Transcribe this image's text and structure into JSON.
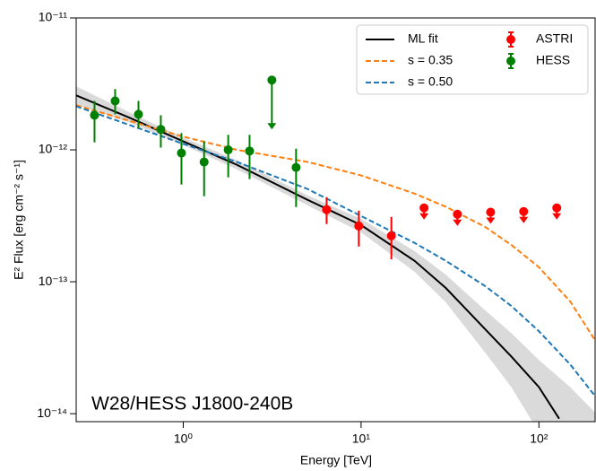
{
  "chart_data": {
    "type": "line",
    "annotation": "W28/HESS J1800-240B",
    "x_label": "Energy [TeV]",
    "y_label": "E² Flux [erg cm⁻² s⁻¹]",
    "log_x": true,
    "log_y": true,
    "legend": "upper right",
    "xlim": [
      0.25,
      207
    ],
    "ylim": [
      8.7e-15,
      1e-11
    ],
    "xticks": [
      {
        "value": 1,
        "label": "10⁰"
      },
      {
        "value": 10,
        "label": "10¹"
      },
      {
        "value": 100,
        "label": "10²"
      }
    ],
    "yticks": [
      {
        "value": 1e-14,
        "label": "10⁻¹⁴"
      },
      {
        "value": 1e-13,
        "label": "10⁻¹³"
      },
      {
        "value": 1e-12,
        "label": "10⁻¹²"
      },
      {
        "value": 1e-11,
        "label": "10⁻¹¹"
      }
    ],
    "band": {
      "color": "#dadada",
      "x": [
        0.25,
        0.5,
        1,
        2,
        5,
        10,
        20,
        30,
        50,
        70,
        100,
        150,
        207
      ],
      "high": [
        3.03e-12,
        1.92e-12,
        1.24e-12,
        8.35e-13,
        4.52e-13,
        3e-13,
        1.71e-13,
        1.13e-13,
        6.05e-14,
        4.08e-14,
        2.55e-14,
        1.59e-14,
        1.02e-14
      ],
      "low": [
        2.21e-12,
        1.61e-12,
        1.09e-12,
        7.13e-13,
        3.8e-13,
        2.37e-13,
        1.19e-13,
        6.97e-14,
        2.89e-14,
        1.59e-14,
        7.2e-15,
        5e-15,
        3e-15
      ]
    },
    "lines": [
      {
        "name": "ML fit",
        "color": "#000000",
        "linestyle": "solid",
        "x": [
          0.25,
          0.5,
          1,
          2,
          5,
          10,
          20,
          30,
          50,
          70,
          100,
          130
        ],
        "values": [
          2.59e-12,
          1.75e-12,
          1.16e-12,
          7.71e-13,
          4.18e-13,
          2.69e-13,
          1.44e-13,
          8.95e-14,
          4.35e-14,
          2.71e-14,
          1.59e-14,
          9.16e-15
        ]
      },
      {
        "name": "s = 0.35",
        "color": "#ff7f0e",
        "linestyle": "dashed",
        "x": [
          0.25,
          1,
          2,
          5,
          10,
          20,
          30,
          50,
          70,
          100,
          150,
          207
        ],
        "values": [
          2.18e-12,
          1.26e-12,
          1e-12,
          8.1e-13,
          6.4e-13,
          4.66e-13,
          3.7e-13,
          2.6e-13,
          1.9e-13,
          1.29e-13,
          7.08e-14,
          3.6e-14
        ]
      },
      {
        "name": "s = 0.50",
        "color": "#1f77b4",
        "linestyle": "dashed",
        "x": [
          0.25,
          1,
          2,
          5,
          10,
          20,
          30,
          50,
          70,
          100,
          150,
          207
        ],
        "values": [
          2.14e-12,
          1.11e-12,
          8.1e-13,
          5.05e-13,
          3.15e-13,
          1.97e-13,
          1.44e-13,
          9.25e-14,
          6.55e-14,
          4.22e-14,
          2.36e-14,
          1.36e-14
        ]
      }
    ],
    "points": [
      {
        "name": "ASTRI",
        "color": "#ff0000",
        "x": [
          6.4,
          9.71,
          14.8,
          22.6,
          34.8,
          53.5,
          82.1,
          126
        ],
        "values": [
          3.52e-13,
          2.65e-13,
          2.23e-13,
          3.63e-13,
          3.25e-13,
          3.37e-13,
          3.41e-13,
          3.63e-13
        ],
        "ylow": [
          2.74e-13,
          1.85e-13,
          1.48e-13,
          null,
          null,
          null,
          null,
          null
        ],
        "yhigh": [
          4.38e-13,
          3.46e-13,
          3.1e-13,
          null,
          null,
          null,
          null,
          null
        ],
        "upper_limits": [
          false,
          false,
          false,
          true,
          true,
          true,
          true,
          true
        ]
      },
      {
        "name": "HESS",
        "color": "#008000",
        "x": [
          0.317,
          0.414,
          0.56,
          0.748,
          0.977,
          1.31,
          1.79,
          2.36,
          3.15,
          4.31
        ],
        "values": [
          1.83e-12,
          2.35e-12,
          1.86e-12,
          1.43e-12,
          9.46e-13,
          8.09e-13,
          1e-12,
          9.8e-13,
          3.38e-12,
          7.36e-13
        ],
        "ylow": [
          1.14e-12,
          1.86e-12,
          1.45e-12,
          1.04e-12,
          5.46e-13,
          4.45e-13,
          6.19e-13,
          6e-13,
          null,
          3.69e-13
        ],
        "yhigh": [
          2.35e-12,
          2.89e-12,
          2.35e-12,
          1.83e-12,
          1.34e-12,
          1.16e-12,
          1.3e-12,
          1.3e-12,
          null,
          1.02e-12
        ],
        "upper_limits": [
          false,
          false,
          false,
          false,
          false,
          false,
          false,
          false,
          true,
          false
        ]
      }
    ]
  }
}
